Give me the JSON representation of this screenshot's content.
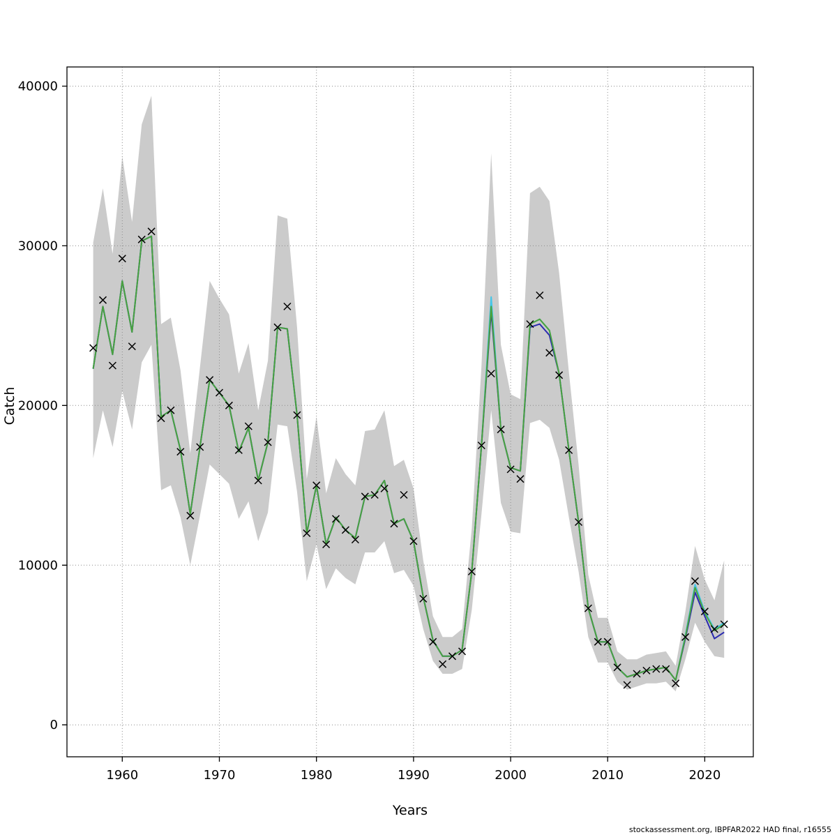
{
  "figure": {
    "xlabel": "Years",
    "ylabel": "Catch",
    "credit": "stockassessment.org, IBPFAR2022 HAD final, r16555"
  },
  "chart_data": {
    "type": "line",
    "title": "",
    "xlabel": "Years",
    "ylabel": "Catch",
    "xlim": [
      1954.3,
      2025.0
    ],
    "ylim": [
      -2000,
      41200
    ],
    "x_ticks": [
      1960,
      1970,
      1980,
      1990,
      2000,
      2010,
      2020
    ],
    "y_ticks": [
      0,
      10000,
      20000,
      30000,
      40000
    ],
    "grid": true,
    "legend_position": "none",
    "years": [
      1957,
      1958,
      1959,
      1960,
      1961,
      1962,
      1963,
      1964,
      1965,
      1966,
      1967,
      1968,
      1969,
      1970,
      1971,
      1972,
      1973,
      1974,
      1975,
      1976,
      1977,
      1978,
      1979,
      1980,
      1981,
      1982,
      1983,
      1984,
      1985,
      1986,
      1987,
      1988,
      1989,
      1990,
      1991,
      1992,
      1993,
      1994,
      1995,
      1996,
      1997,
      1998,
      1999,
      2000,
      2001,
      2002,
      2003,
      2004,
      2005,
      2006,
      2007,
      2008,
      2009,
      2010,
      2011,
      2012,
      2013,
      2014,
      2015,
      2016,
      2017,
      2018,
      2019,
      2020,
      2021,
      2022
    ],
    "band": {
      "name": "confidence-interval",
      "color": "#cbcbcb",
      "low": [
        16700,
        19700,
        17400,
        20900,
        18500,
        22700,
        23800,
        14700,
        15000,
        13000,
        10000,
        13100,
        16300,
        15700,
        15100,
        12900,
        14000,
        11500,
        13300,
        18800,
        18700,
        14600,
        9000,
        11300,
        8500,
        9800,
        9200,
        8800,
        10800,
        10800,
        11500,
        9500,
        9700,
        8700,
        6000,
        4000,
        3200,
        3200,
        3500,
        7200,
        13200,
        19700,
        13900,
        12100,
        12000,
        18900,
        19100,
        18600,
        16600,
        13000,
        9600,
        5500,
        3900,
        3900,
        2700,
        2200,
        2400,
        2600,
        2600,
        2700,
        2100,
        4100,
        6400,
        5200,
        4300,
        4200
      ],
      "high": [
        30200,
        33600,
        29500,
        35600,
        31500,
        37600,
        39400,
        25100,
        25500,
        22200,
        17000,
        22400,
        27800,
        26700,
        25700,
        22000,
        23900,
        19700,
        22800,
        31900,
        31700,
        24900,
        15400,
        19300,
        14500,
        16700,
        15700,
        15000,
        18400,
        18500,
        19700,
        16200,
        16600,
        14800,
        10300,
        6800,
        5500,
        5500,
        6000,
        12300,
        22500,
        35800,
        23800,
        20700,
        20400,
        33300,
        33700,
        32800,
        28300,
        22100,
        16300,
        9400,
        6700,
        6700,
        4600,
        4100,
        4100,
        4400,
        4500,
        4600,
        3700,
        7100,
        11200,
        9100,
        7800,
        10300
      ]
    },
    "series": [
      {
        "name": "fit-cyan",
        "color": "#45c6e8",
        "width": 2,
        "values": [
          22300,
          26200,
          23200,
          27800,
          24600,
          30300,
          30600,
          19300,
          19700,
          17200,
          13200,
          17400,
          21600,
          20800,
          20000,
          17100,
          18600,
          15300,
          17700,
          24900,
          24800,
          19400,
          12000,
          15000,
          11300,
          13000,
          12200,
          11700,
          14300,
          14400,
          15300,
          12600,
          12900,
          11500,
          8000,
          5300,
          4300,
          4300,
          4700,
          9600,
          17500,
          26800,
          18500,
          16100,
          15900,
          25100,
          25400,
          24700,
          22000,
          17200,
          12700,
          7300,
          5200,
          5200,
          3600,
          3000,
          3200,
          3400,
          3500,
          3600,
          2800,
          5600,
          8800,
          7100,
          6000,
          6400
        ]
      },
      {
        "name": "fit-blue",
        "color": "#2a2ab0",
        "width": 2,
        "values": [
          22300,
          26200,
          23200,
          27800,
          24600,
          30300,
          30600,
          19300,
          19700,
          17200,
          13200,
          17400,
          21600,
          20800,
          20000,
          17100,
          18600,
          15300,
          17700,
          24900,
          24800,
          19400,
          12000,
          15000,
          11300,
          13000,
          12200,
          11700,
          14300,
          14400,
          15300,
          12600,
          12900,
          11500,
          8000,
          5300,
          4300,
          4300,
          4700,
          9600,
          17500,
          25900,
          18500,
          16100,
          15900,
          24900,
          25100,
          24400,
          22000,
          17200,
          12700,
          7300,
          5200,
          5200,
          3600,
          3000,
          3200,
          3400,
          3500,
          3600,
          2800,
          5400,
          8300,
          6800,
          5400,
          5800
        ]
      },
      {
        "name": "fit-green",
        "color": "#4aa23e",
        "width": 2,
        "values": [
          22300,
          26200,
          23200,
          27800,
          24600,
          30300,
          30600,
          19300,
          19700,
          17200,
          13200,
          17400,
          21600,
          20800,
          20000,
          17100,
          18600,
          15300,
          17700,
          24900,
          24800,
          19400,
          12000,
          15000,
          11300,
          13000,
          12200,
          11700,
          14300,
          14400,
          15300,
          12600,
          12900,
          11500,
          8000,
          5300,
          4300,
          4300,
          4700,
          9600,
          17500,
          26200,
          18500,
          16100,
          15900,
          25100,
          25400,
          24700,
          22000,
          17200,
          12700,
          7300,
          5200,
          5200,
          3600,
          3000,
          3200,
          3400,
          3500,
          3600,
          2800,
          5500,
          8600,
          7000,
          5900,
          6300
        ]
      }
    ],
    "markers": {
      "name": "observed-catch",
      "symbol": "x",
      "color": "#000000",
      "values": [
        23600,
        26600,
        22500,
        29200,
        23700,
        30400,
        30900,
        19200,
        19700,
        17100,
        13100,
        17400,
        21600,
        20800,
        20000,
        17200,
        18700,
        15300,
        17700,
        24900,
        26200,
        19400,
        12000,
        15000,
        11300,
        12900,
        12200,
        11600,
        14300,
        14400,
        14800,
        12600,
        14400,
        11500,
        7900,
        5200,
        3800,
        4300,
        4600,
        9600,
        17500,
        22000,
        18500,
        16000,
        15400,
        25100,
        26900,
        23300,
        21900,
        17200,
        12700,
        7300,
        5200,
        5200,
        3600,
        2500,
        3200,
        3400,
        3500,
        3500,
        2600,
        5500,
        9000,
        7100,
        6000,
        6300
      ]
    }
  }
}
